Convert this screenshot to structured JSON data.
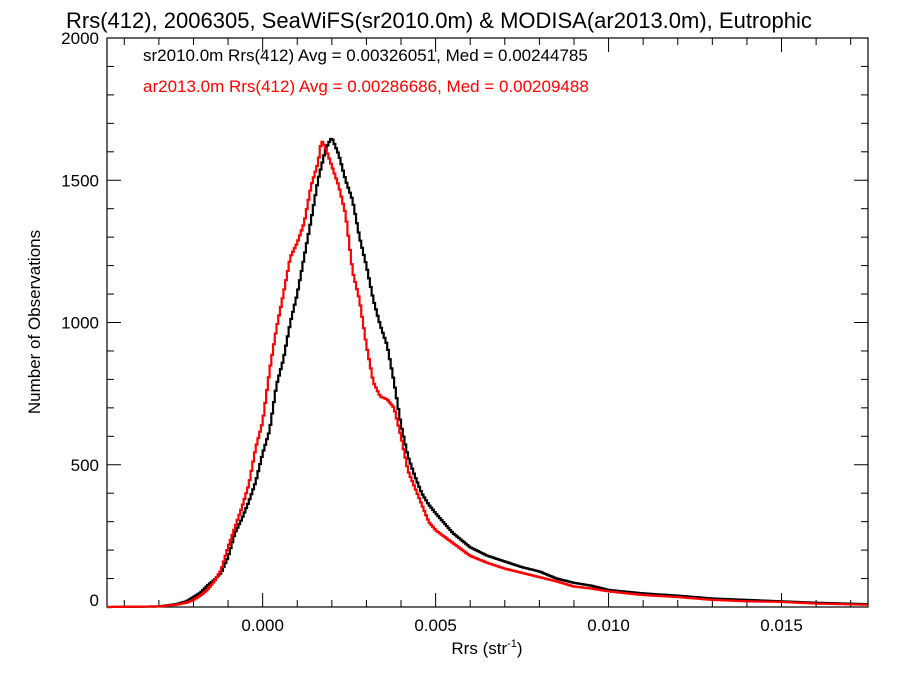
{
  "chart_data": {
    "type": "line",
    "title": "Rrs(412), 2006305, SeaWiFS(sr2010.0m) & MODISA(ar2013.0m), Eutrophic",
    "xlabel_main": "Rrs (str",
    "xlabel_sup": "-1",
    "xlabel_close": ")",
    "ylabel": "Number of Observations",
    "xlim": [
      -0.0045,
      0.0175
    ],
    "ylim": [
      0,
      2000
    ],
    "xticks": [
      0.0,
      0.005,
      0.01,
      0.015
    ],
    "xtick_labels": [
      "0.000",
      "0.005",
      "0.010",
      "0.015"
    ],
    "yticks": [
      0,
      500,
      1000,
      1500,
      2000
    ],
    "ytick_labels": [
      "0",
      "500",
      "1000",
      "1500",
      "2000"
    ],
    "grid": false,
    "legend_position": "top-left",
    "series": [
      {
        "name": "sr2010.0m Rrs(412) Avg = 0.00326051, Med = 0.00244785",
        "color": "#000000",
        "points": [
          [
            -0.0045,
            0
          ],
          [
            -0.003,
            2
          ],
          [
            -0.0025,
            10
          ],
          [
            -0.0022,
            20
          ],
          [
            -0.002,
            35
          ],
          [
            -0.0018,
            50
          ],
          [
            -0.0016,
            75
          ],
          [
            -0.0014,
            95
          ],
          [
            -0.0012,
            120
          ],
          [
            -0.001,
            175
          ],
          [
            -0.0008,
            260
          ],
          [
            -0.0006,
            310
          ],
          [
            -0.0004,
            370
          ],
          [
            -0.0002,
            440
          ],
          [
            0.0,
            540
          ],
          [
            0.0002,
            620
          ],
          [
            0.0004,
            780
          ],
          [
            0.0006,
            870
          ],
          [
            0.0008,
            1000
          ],
          [
            0.001,
            1100
          ],
          [
            0.0012,
            1230
          ],
          [
            0.0014,
            1360
          ],
          [
            0.0016,
            1500
          ],
          [
            0.0018,
            1600
          ],
          [
            0.0019,
            1630
          ],
          [
            0.002,
            1650
          ],
          [
            0.0022,
            1590
          ],
          [
            0.0024,
            1500
          ],
          [
            0.0026,
            1430
          ],
          [
            0.0028,
            1300
          ],
          [
            0.003,
            1200
          ],
          [
            0.0032,
            1080
          ],
          [
            0.0034,
            990
          ],
          [
            0.0036,
            920
          ],
          [
            0.0038,
            790
          ],
          [
            0.004,
            640
          ],
          [
            0.0042,
            530
          ],
          [
            0.0044,
            460
          ],
          [
            0.0046,
            400
          ],
          [
            0.0048,
            360
          ],
          [
            0.005,
            330
          ],
          [
            0.0055,
            260
          ],
          [
            0.006,
            210
          ],
          [
            0.0065,
            180
          ],
          [
            0.007,
            160
          ],
          [
            0.0075,
            140
          ],
          [
            0.008,
            125
          ],
          [
            0.0085,
            100
          ],
          [
            0.009,
            85
          ],
          [
            0.0095,
            75
          ],
          [
            0.01,
            60
          ],
          [
            0.011,
            48
          ],
          [
            0.012,
            40
          ],
          [
            0.013,
            30
          ],
          [
            0.014,
            25
          ],
          [
            0.015,
            20
          ],
          [
            0.016,
            15
          ],
          [
            0.0175,
            10
          ]
        ]
      },
      {
        "name": "ar2013.0m Rrs(412) Avg = 0.00286686, Med = 0.00209488",
        "color": "#ff0000",
        "points": [
          [
            -0.0045,
            0
          ],
          [
            -0.003,
            2
          ],
          [
            -0.0025,
            8
          ],
          [
            -0.0022,
            15
          ],
          [
            -0.002,
            25
          ],
          [
            -0.0018,
            40
          ],
          [
            -0.0016,
            60
          ],
          [
            -0.0014,
            90
          ],
          [
            -0.0012,
            130
          ],
          [
            -0.001,
            210
          ],
          [
            -0.0008,
            280
          ],
          [
            -0.0006,
            350
          ],
          [
            -0.0004,
            430
          ],
          [
            -0.0002,
            560
          ],
          [
            0.0,
            650
          ],
          [
            0.0002,
            830
          ],
          [
            0.0004,
            980
          ],
          [
            0.0006,
            1100
          ],
          [
            0.0008,
            1230
          ],
          [
            0.001,
            1280
          ],
          [
            0.0012,
            1350
          ],
          [
            0.0014,
            1480
          ],
          [
            0.0016,
            1560
          ],
          [
            0.0017,
            1640
          ],
          [
            0.0018,
            1620
          ],
          [
            0.002,
            1550
          ],
          [
            0.0022,
            1480
          ],
          [
            0.0024,
            1380
          ],
          [
            0.0026,
            1180
          ],
          [
            0.0028,
            1080
          ],
          [
            0.003,
            920
          ],
          [
            0.0032,
            790
          ],
          [
            0.0034,
            740
          ],
          [
            0.0036,
            730
          ],
          [
            0.0038,
            700
          ],
          [
            0.004,
            600
          ],
          [
            0.0042,
            480
          ],
          [
            0.0044,
            420
          ],
          [
            0.0046,
            360
          ],
          [
            0.0048,
            300
          ],
          [
            0.005,
            270
          ],
          [
            0.0055,
            225
          ],
          [
            0.006,
            180
          ],
          [
            0.0065,
            155
          ],
          [
            0.007,
            135
          ],
          [
            0.0075,
            120
          ],
          [
            0.008,
            105
          ],
          [
            0.0085,
            90
          ],
          [
            0.009,
            72
          ],
          [
            0.0095,
            65
          ],
          [
            0.01,
            55
          ],
          [
            0.011,
            42
          ],
          [
            0.012,
            35
          ],
          [
            0.013,
            25
          ],
          [
            0.014,
            20
          ],
          [
            0.015,
            18
          ],
          [
            0.016,
            12
          ],
          [
            0.0175,
            8
          ]
        ]
      }
    ]
  }
}
